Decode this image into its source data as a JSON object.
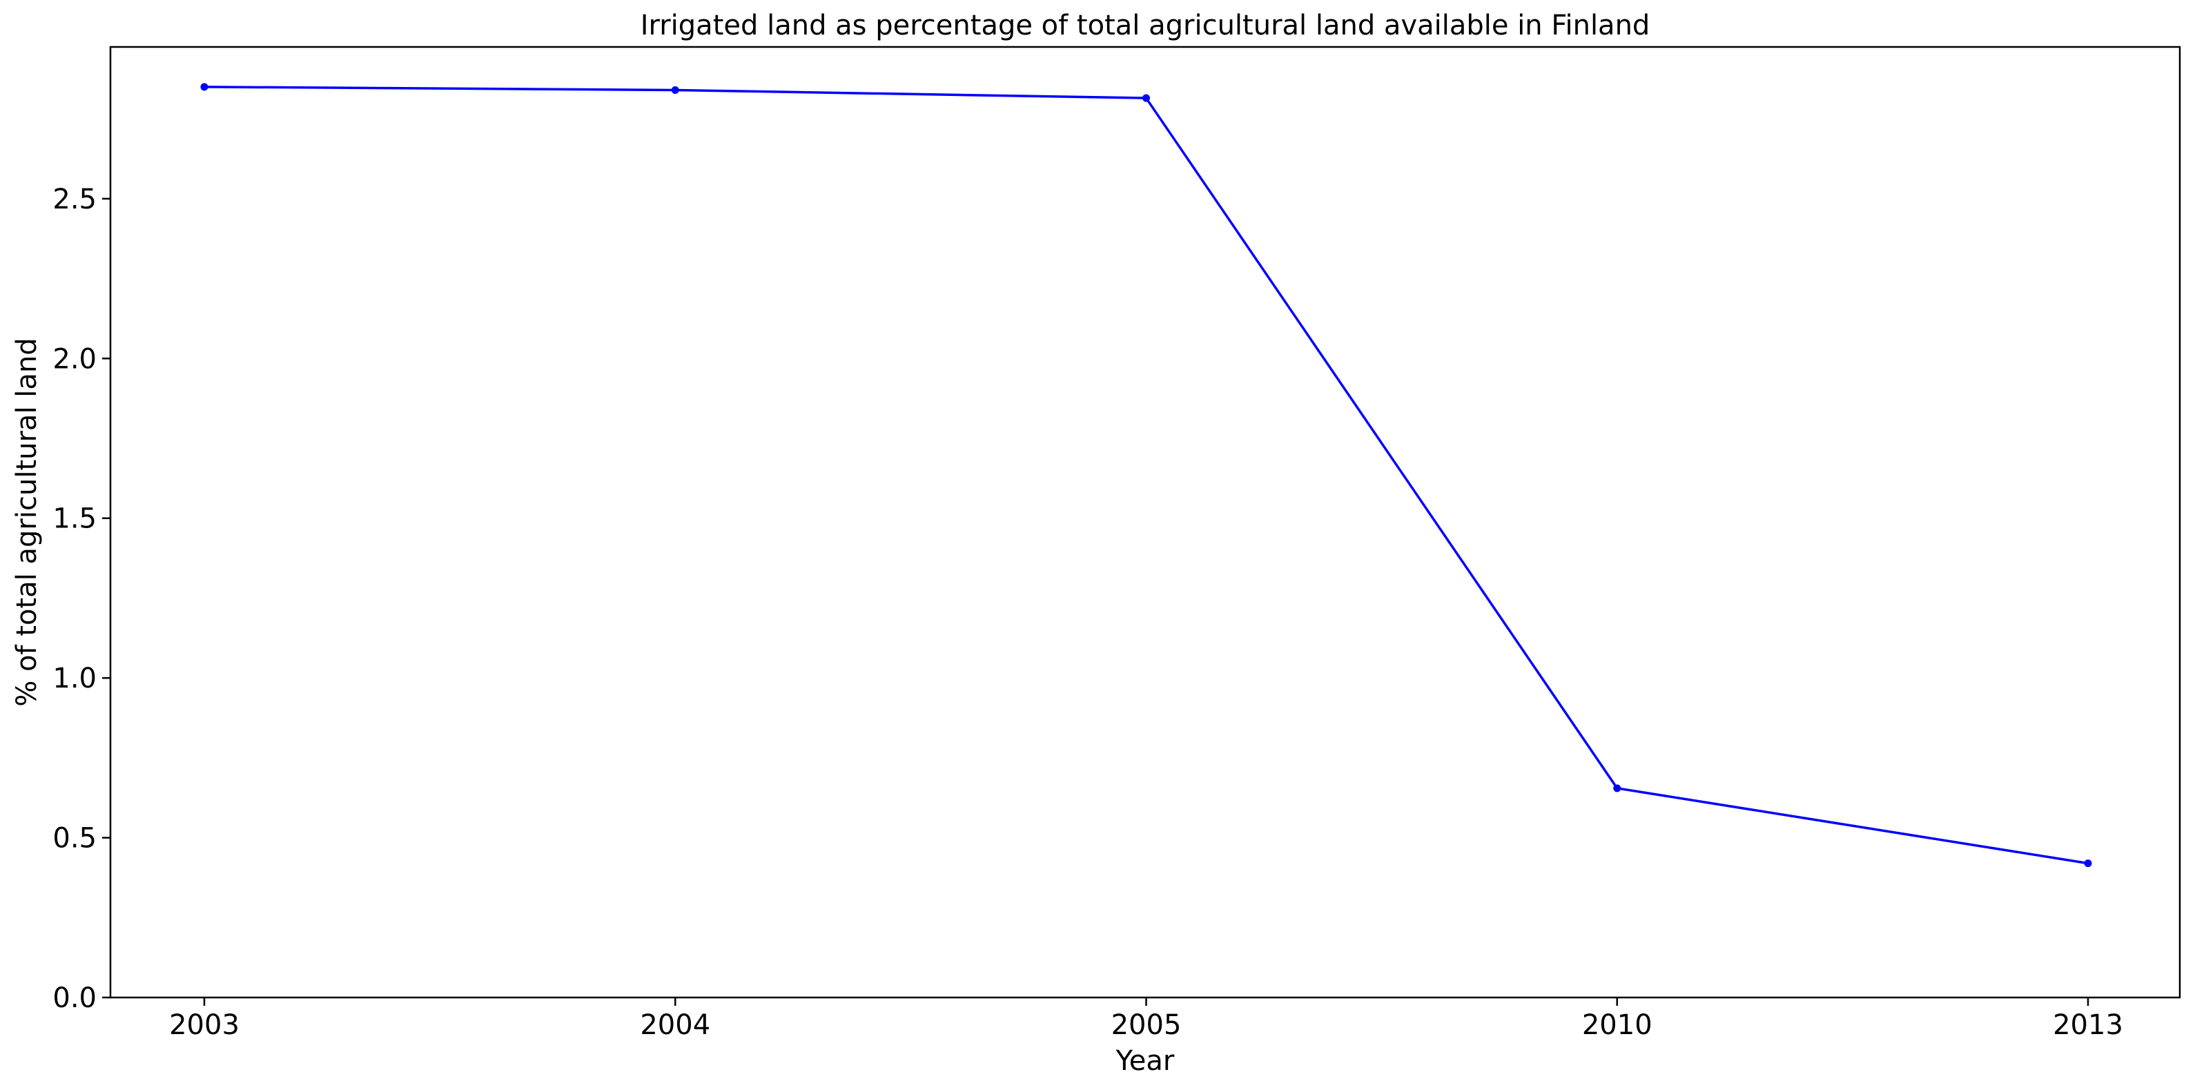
{
  "chart_data": {
    "type": "line",
    "title": "Irrigated land as percentage of total agricultural land available in Finland",
    "xlabel": "Year",
    "ylabel": "% of total agricultural land",
    "categories": [
      "2003",
      "2004",
      "2005",
      "2010",
      "2013"
    ],
    "series": [
      {
        "values": [
          2.85,
          2.84,
          2.815,
          0.655,
          0.42
        ],
        "color": "#0000ff",
        "marker": "dot"
      }
    ],
    "ylim": [
      0,
      2.975
    ],
    "yticks": [
      "0.0",
      "0.5",
      "1.0",
      "1.5",
      "2.0",
      "2.5"
    ],
    "ytick_values": [
      0,
      0.5,
      1.0,
      1.5,
      2.0,
      2.5
    ],
    "grid": false,
    "legend": "none"
  }
}
